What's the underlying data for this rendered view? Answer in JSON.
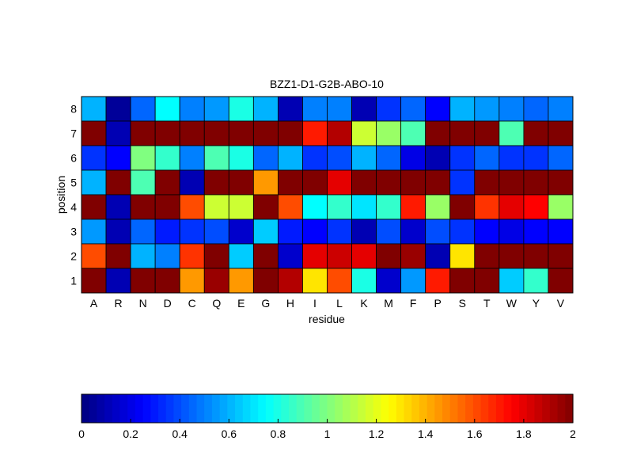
{
  "chart_data": {
    "type": "heatmap",
    "title": "BZZ1-D1-G2B-ABO-10",
    "xlabel": "residue",
    "ylabel": "position",
    "x_categories": [
      "A",
      "R",
      "N",
      "D",
      "C",
      "Q",
      "E",
      "G",
      "H",
      "I",
      "L",
      "K",
      "M",
      "F",
      "P",
      "S",
      "T",
      "W",
      "Y",
      "V"
    ],
    "y_categories": [
      "1",
      "2",
      "3",
      "4",
      "5",
      "6",
      "7",
      "8"
    ],
    "rows": [
      {
        "position": "8",
        "values": [
          0.6,
          0.05,
          0.45,
          0.75,
          0.5,
          0.55,
          0.8,
          0.6,
          0.1,
          0.5,
          0.5,
          0.1,
          0.35,
          0.45,
          0.25,
          0.6,
          0.55,
          0.5,
          0.45,
          0.5
        ]
      },
      {
        "position": "7",
        "values": [
          2.0,
          0.1,
          2.0,
          2.0,
          2.0,
          2.0,
          2.0,
          2.0,
          2.0,
          1.7,
          1.9,
          1.15,
          1.05,
          0.9,
          2.0,
          2.0,
          2.0,
          0.9,
          2.0,
          2.0
        ]
      },
      {
        "position": "6",
        "values": [
          0.35,
          0.25,
          1.0,
          0.85,
          0.5,
          0.9,
          0.8,
          0.45,
          0.6,
          0.35,
          0.4,
          0.6,
          0.45,
          0.2,
          0.1,
          0.35,
          0.45,
          0.35,
          0.35,
          0.45
        ]
      },
      {
        "position": "5",
        "values": [
          0.6,
          2.0,
          0.9,
          2.0,
          0.1,
          2.0,
          2.0,
          1.45,
          2.0,
          2.0,
          1.8,
          2.0,
          2.0,
          2.0,
          2.0,
          0.35,
          2.0,
          2.0,
          2.0,
          2.0
        ]
      },
      {
        "position": "4",
        "values": [
          2.0,
          0.1,
          2.0,
          2.0,
          1.6,
          1.15,
          1.15,
          2.0,
          1.6,
          0.75,
          0.85,
          0.7,
          0.85,
          1.7,
          1.05,
          2.0,
          1.65,
          1.8,
          1.75,
          1.05
        ]
      },
      {
        "position": "3",
        "values": [
          0.55,
          0.1,
          0.45,
          0.3,
          0.35,
          0.4,
          0.15,
          0.65,
          0.3,
          0.25,
          0.35,
          0.1,
          0.4,
          0.15,
          0.4,
          0.35,
          0.25,
          0.2,
          0.25,
          0.25
        ]
      },
      {
        "position": "2",
        "values": [
          1.6,
          2.0,
          0.6,
          0.5,
          1.65,
          2.0,
          0.65,
          2.0,
          0.15,
          1.8,
          1.85,
          1.8,
          2.0,
          1.95,
          0.1,
          1.3,
          2.0,
          2.0,
          2.0,
          2.0
        ]
      },
      {
        "position": "1",
        "values": [
          2.0,
          0.1,
          2.0,
          2.0,
          1.45,
          1.95,
          1.45,
          2.0,
          1.9,
          1.3,
          1.6,
          0.8,
          0.15,
          0.55,
          1.7,
          2.0,
          2.0,
          0.65,
          0.85,
          2.0
        ]
      }
    ],
    "colormap": "jet",
    "clim": [
      0,
      2
    ],
    "colorbar": {
      "orientation": "horizontal",
      "placement": "bottom",
      "ticks": [
        "0",
        "0.2",
        "0.4",
        "0.6",
        "0.8",
        "1",
        "1.2",
        "1.4",
        "1.6",
        "1.8",
        "2"
      ]
    },
    "grid": false
  }
}
